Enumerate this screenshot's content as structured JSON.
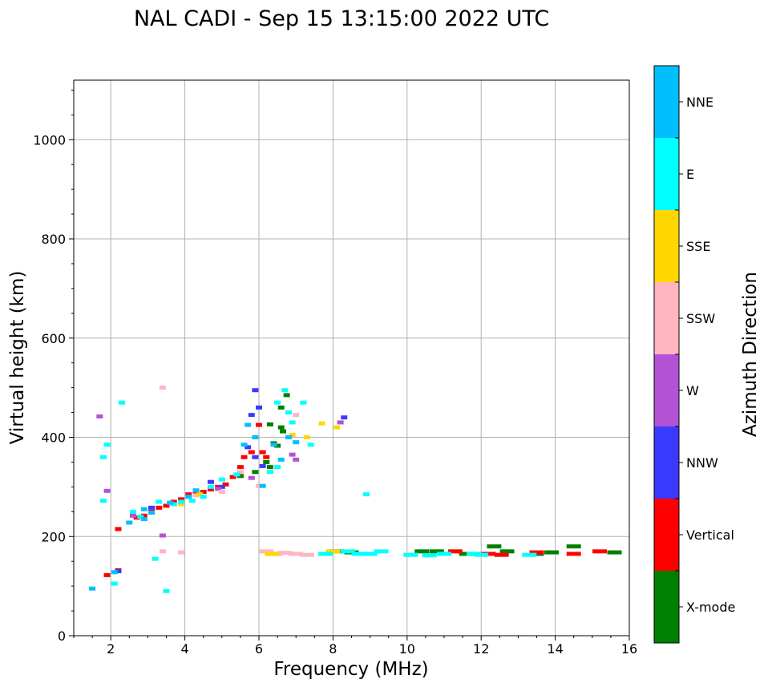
{
  "chart_data": {
    "type": "scatter",
    "title": "NAL CADI - Sep 15 13:15:00 2022 UTC",
    "xlabel": "Frequency (MHz)",
    "ylabel": "Virtual height (km)",
    "xlim": [
      1,
      16
    ],
    "ylim": [
      0,
      1120
    ],
    "xticks": [
      2,
      4,
      6,
      8,
      10,
      12,
      14,
      16
    ],
    "yticks": [
      0,
      200,
      400,
      600,
      800,
      1000
    ],
    "grid": true,
    "colorbar": {
      "label": "Azimuth Direction",
      "categories": [
        "X-mode",
        "Vertical",
        "NNW",
        "W",
        "SSW",
        "SSE",
        "E",
        "NNE"
      ],
      "colors": [
        "#008000",
        "#ff0000",
        "#3a3aff",
        "#b452d6",
        "#ffb6c1",
        "#ffd700",
        "#00ffff",
        "#00bfff"
      ]
    },
    "series": [
      {
        "name": "X-mode",
        "points": [
          [
            6.3,
            426
          ],
          [
            6.4,
            388
          ],
          [
            6.5,
            383
          ],
          [
            6.6,
            420
          ],
          [
            6.65,
            412
          ],
          [
            6.75,
            485
          ],
          [
            6.6,
            460
          ],
          [
            6.2,
            350
          ],
          [
            6.3,
            340
          ],
          [
            5.9,
            330
          ],
          [
            5.5,
            322
          ],
          [
            10.4,
            170
          ],
          [
            10.8,
            170
          ],
          [
            11.6,
            165
          ],
          [
            12.35,
            180
          ],
          [
            12.7,
            170
          ],
          [
            13.5,
            165
          ],
          [
            13.9,
            168
          ],
          [
            14.5,
            180
          ],
          [
            15.6,
            168
          ],
          [
            8.1,
            170
          ],
          [
            8.5,
            168
          ]
        ]
      },
      {
        "name": "Vertical",
        "points": [
          [
            2.2,
            215
          ],
          [
            2.7,
            238
          ],
          [
            2.9,
            242
          ],
          [
            3.1,
            250
          ],
          [
            3.3,
            258
          ],
          [
            3.5,
            262
          ],
          [
            3.7,
            270
          ],
          [
            3.9,
            275
          ],
          [
            4.1,
            285
          ],
          [
            4.3,
            290
          ],
          [
            4.5,
            290
          ],
          [
            4.7,
            295
          ],
          [
            4.9,
            300
          ],
          [
            5.1,
            305
          ],
          [
            5.3,
            320
          ],
          [
            5.5,
            340
          ],
          [
            5.6,
            360
          ],
          [
            5.8,
            370
          ],
          [
            6.0,
            425
          ],
          [
            6.1,
            370
          ],
          [
            6.2,
            360
          ],
          [
            1.9,
            122
          ],
          [
            2.2,
            132
          ],
          [
            11.3,
            170
          ],
          [
            12.2,
            165
          ],
          [
            12.55,
            163
          ],
          [
            13.5,
            168
          ],
          [
            14.5,
            165
          ],
          [
            15.2,
            170
          ]
        ]
      },
      {
        "name": "NNW",
        "points": [
          [
            5.9,
            495
          ],
          [
            6.0,
            460
          ],
          [
            5.8,
            445
          ],
          [
            5.7,
            380
          ],
          [
            5.9,
            360
          ],
          [
            6.1,
            342
          ],
          [
            4.7,
            310
          ],
          [
            5.0,
            300
          ],
          [
            3.1,
            258
          ],
          [
            2.2,
            130
          ],
          [
            8.3,
            440
          ]
        ]
      },
      {
        "name": "W",
        "points": [
          [
            5.8,
            318
          ],
          [
            4.9,
            296
          ],
          [
            2.6,
            242
          ],
          [
            1.7,
            442
          ],
          [
            1.9,
            292
          ],
          [
            8.2,
            430
          ],
          [
            6.9,
            365
          ],
          [
            7.0,
            355
          ],
          [
            3.4,
            202
          ]
        ]
      },
      {
        "name": "SSW",
        "points": [
          [
            6.2,
            170
          ],
          [
            6.45,
            165
          ],
          [
            6.7,
            167
          ],
          [
            7.0,
            165
          ],
          [
            7.3,
            163
          ],
          [
            5.0,
            290
          ],
          [
            5.5,
            330
          ],
          [
            6.0,
            302
          ],
          [
            3.4,
            500
          ],
          [
            3.4,
            170
          ],
          [
            3.9,
            168
          ],
          [
            4.3,
            283
          ],
          [
            7.0,
            445
          ]
        ]
      },
      {
        "name": "SSE",
        "points": [
          [
            6.35,
            165
          ],
          [
            8.0,
            170
          ],
          [
            8.1,
            420
          ],
          [
            7.7,
            428
          ],
          [
            6.9,
            405
          ],
          [
            7.3,
            400
          ],
          [
            4.4,
            285
          ],
          [
            3.9,
            265
          ]
        ]
      },
      {
        "name": "E",
        "points": [
          [
            8.4,
            170
          ],
          [
            8.7,
            165
          ],
          [
            9.0,
            165
          ],
          [
            9.3,
            170
          ],
          [
            7.8,
            165
          ],
          [
            10.1,
            163
          ],
          [
            10.6,
            162
          ],
          [
            11.0,
            165
          ],
          [
            11.8,
            165
          ],
          [
            12.0,
            163
          ],
          [
            13.3,
            163
          ],
          [
            6.9,
            430
          ],
          [
            6.8,
            450
          ],
          [
            7.2,
            470
          ],
          [
            7.4,
            385
          ],
          [
            6.5,
            470
          ],
          [
            6.7,
            495
          ],
          [
            6.3,
            330
          ],
          [
            6.5,
            340
          ],
          [
            3.3,
            270
          ],
          [
            3.7,
            265
          ],
          [
            3.9,
            270
          ],
          [
            4.2,
            272
          ],
          [
            4.5,
            280
          ],
          [
            4.7,
            300
          ],
          [
            5.0,
            315
          ],
          [
            5.4,
            325
          ],
          [
            2.8,
            240
          ],
          [
            2.6,
            250
          ],
          [
            2.1,
            105
          ],
          [
            1.8,
            360
          ],
          [
            1.9,
            385
          ],
          [
            8.9,
            285
          ],
          [
            3.5,
            90
          ],
          [
            3.2,
            155
          ],
          [
            1.8,
            272
          ],
          [
            2.3,
            470
          ]
        ]
      },
      {
        "name": "NNE",
        "points": [
          [
            5.7,
            425
          ],
          [
            5.9,
            400
          ],
          [
            6.6,
            355
          ],
          [
            6.4,
            385
          ],
          [
            5.6,
            385
          ],
          [
            4.3,
            293
          ],
          [
            4.1,
            280
          ],
          [
            3.6,
            268
          ],
          [
            2.9,
            255
          ],
          [
            2.5,
            228
          ],
          [
            2.1,
            128
          ],
          [
            1.5,
            95
          ],
          [
            2.9,
            235
          ],
          [
            3.1,
            248
          ],
          [
            6.1,
            302
          ],
          [
            6.8,
            400
          ],
          [
            7.0,
            390
          ]
        ]
      }
    ]
  }
}
